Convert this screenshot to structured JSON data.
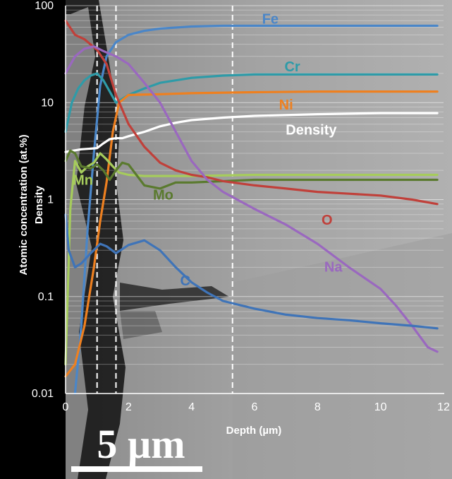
{
  "chart_data": {
    "type": "line",
    "y_scale": "log",
    "xlim": [
      0,
      12
    ],
    "ylim": [
      0.01,
      100
    ],
    "xlabel": "Depth (µm)",
    "ylabel": "Atomic concentration (at.%)",
    "ylabel2": "Density",
    "x_ticks": [
      "0",
      "2",
      "4",
      "6",
      "8",
      "10",
      "12"
    ],
    "x_tick_values": [
      0,
      2,
      4,
      6,
      8,
      10,
      12
    ],
    "y_ticks": [
      "0.01",
      "0.1",
      "1",
      "10",
      "100"
    ],
    "y_tick_values": [
      0.01,
      0.1,
      1,
      10,
      100
    ],
    "vertical_markers": [
      1.0,
      1.6,
      5.3
    ],
    "scale_bar": "5 µm",
    "series": [
      {
        "name": "Fe",
        "color": "#4a86c8",
        "label_at": [
          6.5,
          65
        ],
        "x": [
          0.3,
          0.5,
          0.7,
          0.9,
          1.1,
          1.3,
          1.6,
          2.0,
          2.5,
          3.0,
          4.0,
          5.0,
          6.0,
          8.0,
          10.0,
          11.8
        ],
        "y": [
          0.01,
          0.05,
          0.5,
          3,
          15,
          30,
          42,
          50,
          55,
          58,
          61,
          62,
          62,
          62,
          62,
          62
        ]
      },
      {
        "name": "Cr",
        "color": "#2e9ba8",
        "label_at": [
          7.2,
          21
        ],
        "x": [
          0,
          0.2,
          0.4,
          0.6,
          0.8,
          1.0,
          1.2,
          1.6,
          2.0,
          2.5,
          3.0,
          4.0,
          5.0,
          6.0,
          8.0,
          10.0,
          11.8
        ],
        "y": [
          5,
          10,
          14,
          17,
          19,
          20,
          17,
          10,
          12,
          14,
          16,
          18,
          19,
          19.5,
          19.5,
          19.5,
          19.5
        ]
      },
      {
        "name": "Ni",
        "color": "#ee8020",
        "label_at": [
          7.0,
          8.5
        ],
        "x": [
          0,
          0.3,
          0.6,
          0.9,
          1.1,
          1.3,
          1.5,
          1.7,
          2.0,
          3.0,
          4.0,
          6.0,
          8.0,
          10.0,
          11.8
        ],
        "y": [
          0.015,
          0.02,
          0.05,
          0.2,
          0.6,
          1.5,
          5,
          10,
          12,
          12.2,
          12.5,
          12.8,
          13,
          13,
          13
        ]
      },
      {
        "name": "Density",
        "color": "#ffffff",
        "label_at": [
          7.8,
          4.7
        ],
        "x": [
          0,
          0.5,
          0.8,
          1.0,
          1.2,
          1.4,
          1.6,
          1.8,
          2.0,
          2.5,
          3.0,
          3.5,
          4.0,
          5.0,
          6.0,
          8.0,
          10.0,
          11.8
        ],
        "y": [
          3.1,
          3.3,
          3.35,
          3.4,
          3.8,
          4.2,
          4.3,
          4.3,
          4.5,
          5,
          5.7,
          6.2,
          6.6,
          7,
          7.3,
          7.6,
          7.8,
          7.8
        ]
      },
      {
        "name": "Mn",
        "color": "#a6cc5c",
        "label_at": [
          0.55,
          1.42
        ],
        "x": [
          0,
          0.15,
          0.3,
          0.5,
          0.7,
          0.9,
          1.1,
          1.3,
          1.5,
          1.7,
          2.0,
          2.5,
          3.0,
          4.0,
          6.0,
          8.0,
          10.0,
          11.8
        ],
        "y": [
          0.02,
          0.8,
          2.5,
          1.9,
          2.2,
          2.4,
          3.0,
          2.6,
          2.2,
          1.9,
          1.8,
          1.75,
          1.75,
          1.75,
          1.8,
          1.8,
          1.8,
          1.8
        ]
      },
      {
        "name": "Mo",
        "color": "#5a7a2e",
        "label_at": [
          3.1,
          1.0
        ],
        "x": [
          0,
          0.15,
          0.3,
          0.5,
          0.8,
          1.0,
          1.2,
          1.4,
          1.6,
          1.8,
          2.0,
          2.5,
          3.0,
          3.5,
          4.0,
          6.0,
          8.0,
          10.0,
          11.8
        ],
        "y": [
          2.5,
          3.2,
          3.0,
          2.2,
          2.1,
          2.3,
          2.0,
          1.6,
          2.0,
          2.4,
          2.3,
          1.4,
          1.3,
          1.5,
          1.5,
          1.6,
          1.6,
          1.6,
          1.6
        ]
      },
      {
        "name": "O",
        "color": "#c0403a",
        "label_at": [
          8.3,
          0.55
        ],
        "x": [
          0,
          0.3,
          0.6,
          1.0,
          1.3,
          1.6,
          2.0,
          2.5,
          3.0,
          3.5,
          4.0,
          4.5,
          5.0,
          6.0,
          7.0,
          8.0,
          9.0,
          10.0,
          11.0,
          11.8
        ],
        "y": [
          70,
          50,
          45,
          35,
          25,
          12,
          6,
          3.5,
          2.4,
          2.0,
          1.8,
          1.7,
          1.55,
          1.4,
          1.3,
          1.2,
          1.15,
          1.1,
          1.0,
          0.9
        ]
      },
      {
        "name": "Na",
        "color": "#9a68bf",
        "label_at": [
          8.5,
          0.18
        ],
        "x": [
          0,
          0.3,
          0.6,
          0.9,
          1.2,
          1.6,
          2.0,
          2.5,
          3.0,
          3.5,
          4.0,
          4.5,
          5.0,
          6.0,
          7.0,
          8.0,
          9.0,
          10.0,
          10.5,
          11.0,
          11.5,
          11.8
        ],
        "y": [
          20,
          30,
          36,
          38,
          34,
          30,
          25,
          16,
          10,
          5,
          2.5,
          1.6,
          1.2,
          0.8,
          0.55,
          0.35,
          0.2,
          0.12,
          0.08,
          0.05,
          0.03,
          0.027
        ]
      },
      {
        "name": "C",
        "color": "#3f74b8",
        "label_at": [
          3.8,
          0.13
        ],
        "x": [
          0,
          0.1,
          0.3,
          0.5,
          0.8,
          1.1,
          1.3,
          1.6,
          2.0,
          2.5,
          3.0,
          3.5,
          4.0,
          4.5,
          5.0,
          6.0,
          7.0,
          8.0,
          9.0,
          10.0,
          11.0,
          11.8
        ],
        "y": [
          0.7,
          0.3,
          0.2,
          0.22,
          0.28,
          0.35,
          0.33,
          0.28,
          0.34,
          0.38,
          0.3,
          0.2,
          0.14,
          0.11,
          0.09,
          0.075,
          0.065,
          0.06,
          0.057,
          0.053,
          0.05,
          0.047
        ]
      }
    ]
  }
}
